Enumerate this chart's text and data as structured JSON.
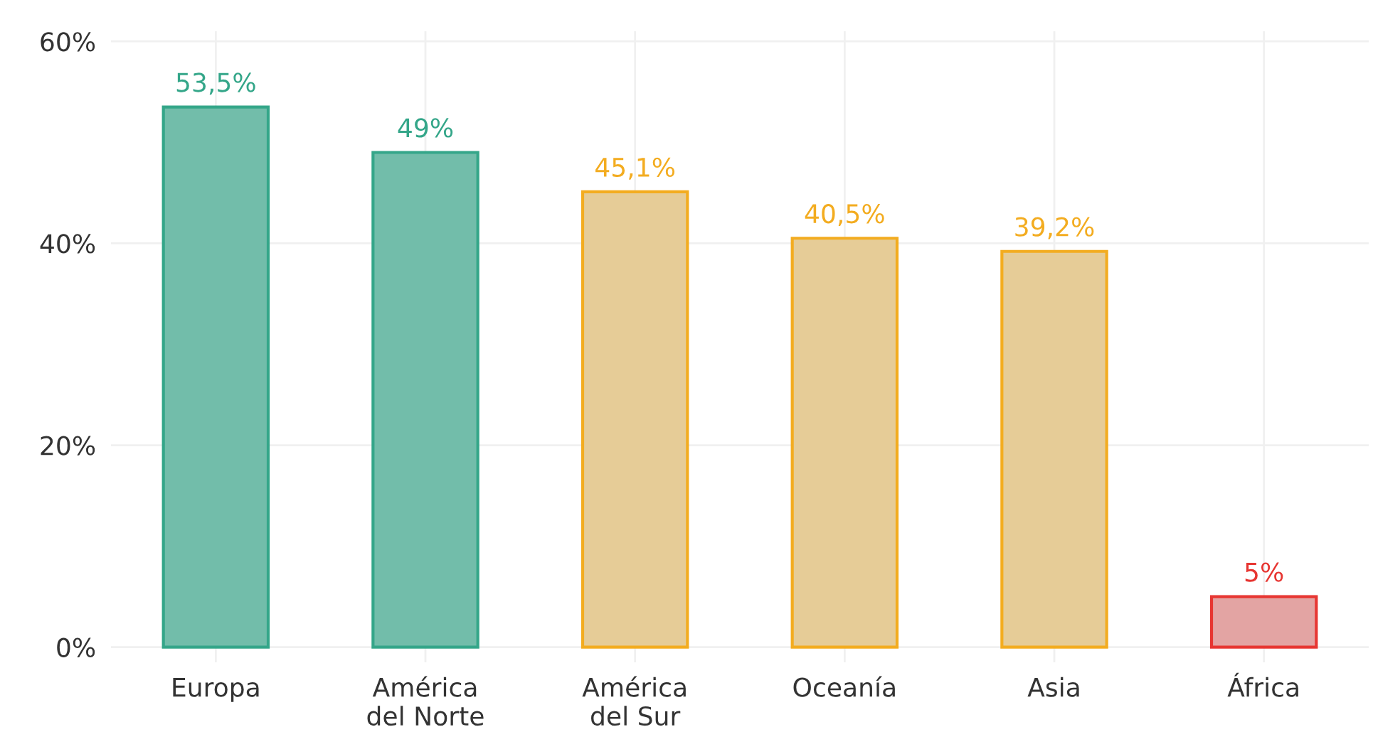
{
  "chart_data": {
    "type": "bar",
    "categories": [
      "Europa",
      "América\ndel Norte",
      "América\ndel Sur",
      "Oceanía",
      "Asia",
      "África"
    ],
    "values": [
      53.5,
      49,
      45.1,
      40.5,
      39.2,
      5
    ],
    "colors": [
      "#66c9b0",
      "#66c9b0",
      "#f3d08a",
      "#f3d08a",
      "#f3d08a",
      "#ee9a98"
    ],
    "value_labels": [
      "53,5%",
      "49%",
      "45,1%",
      "40,5%",
      "39,2%",
      "5%"
    ],
    "ylim": [
      -1.5,
      61
    ],
    "yticks": [
      {
        "value": 0,
        "label": "0%"
      },
      {
        "value": 20,
        "label": "20%"
      },
      {
        "value": 40,
        "label": "40%"
      },
      {
        "value": 60,
        "label": "60%"
      }
    ],
    "grid": true
  }
}
